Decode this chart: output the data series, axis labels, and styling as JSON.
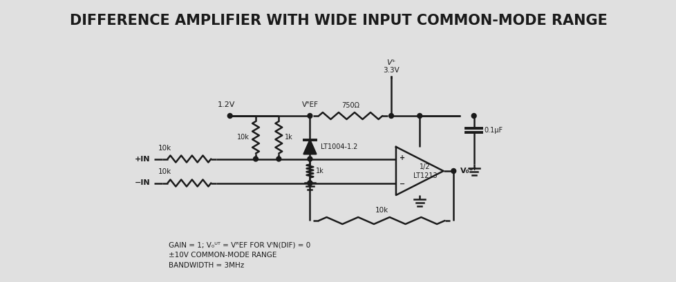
{
  "title": "DIFFERENCE AMPLIFIER WITH WIDE INPUT COMMON-MODE RANGE",
  "title_fontsize": 15,
  "title_fontweight": "bold",
  "bg_color": "#e0e0e0",
  "line_color": "#1a1a1a",
  "footer_lines": [
    "GAIN = 1; V₀ᵁᵀ = VᴿEF FOR VᴵN(DIF) = 0",
    "±10V COMMON-MODE RANGE",
    "BANDWIDTH = 3MHz"
  ],
  "lw": 1.8
}
